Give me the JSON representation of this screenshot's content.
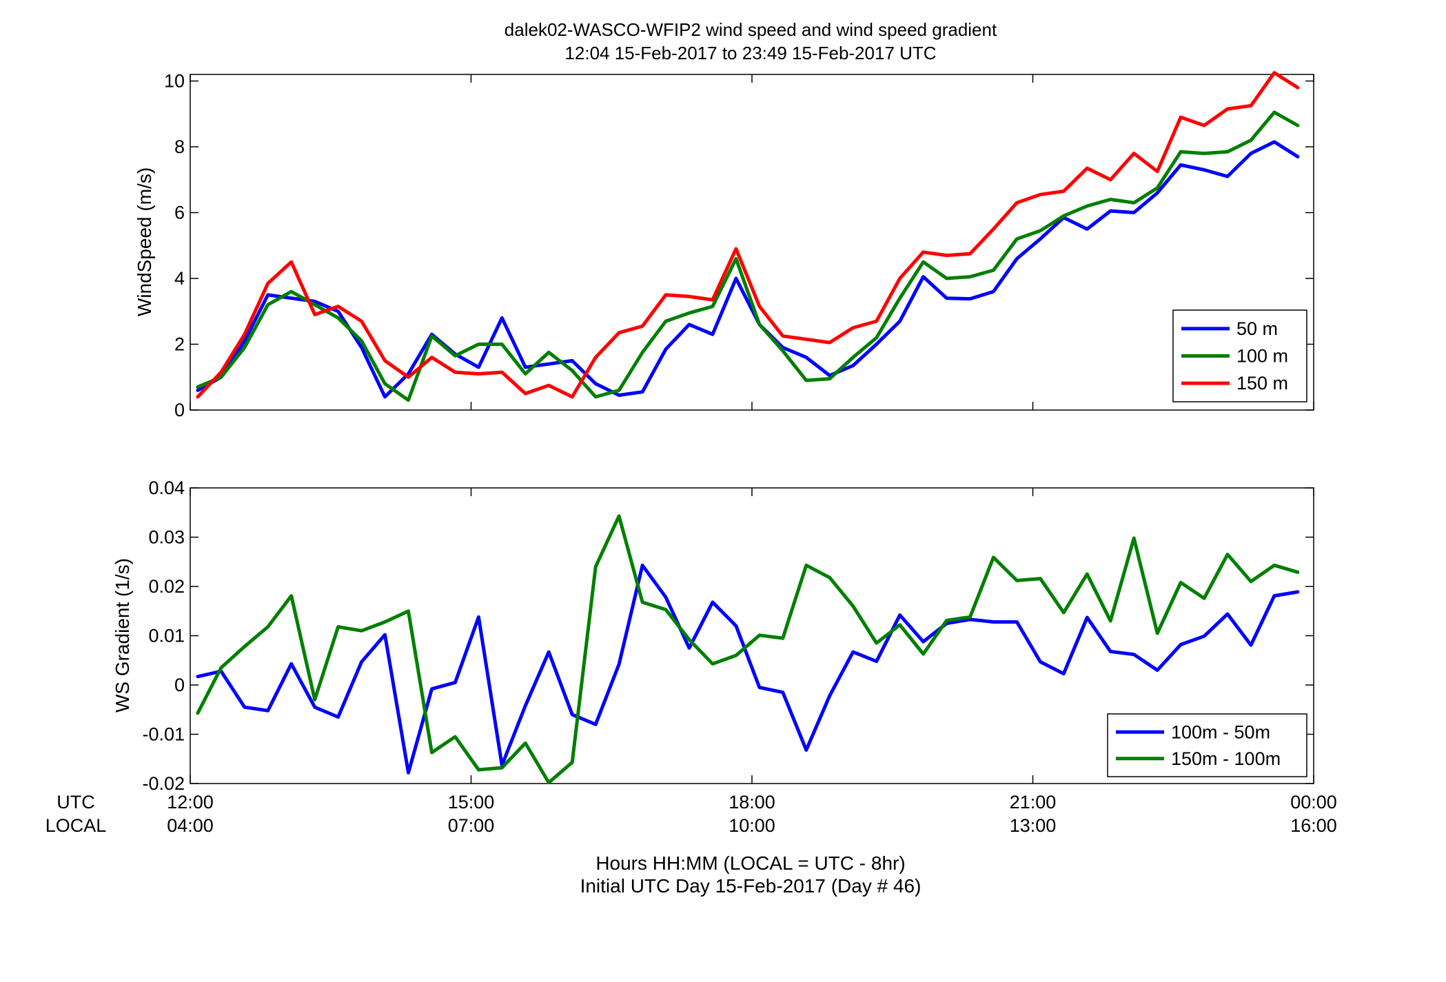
{
  "figure": {
    "title_line1": "dalek02-WASCO-WFIP2  wind speed and wind speed gradient",
    "title_line2": "12:04 15-Feb-2017 to 23:49 15-Feb-2017  UTC",
    "xlabel_line1": "Hours HH:MM  (LOCAL = UTC - 8hr)",
    "xlabel_line2": "Initial UTC Day 15-Feb-2017 (Day # 46)",
    "row_label_utc": "UTC",
    "row_label_local": "LOCAL",
    "utc_ticks": [
      "12:00",
      "15:00",
      "18:00",
      "21:00",
      "00:00"
    ],
    "local_ticks": [
      "04:00",
      "07:00",
      "10:00",
      "13:00",
      "16:00"
    ]
  },
  "chart_data": [
    {
      "type": "line",
      "ylabel": "WindSpeed (m/s)",
      "xlim": [
        12.0,
        24.0
      ],
      "ylim": [
        0,
        10.2
      ],
      "yticks": [
        0,
        2,
        4,
        6,
        8,
        10
      ],
      "ytick_labels": [
        "0",
        "2",
        "4",
        "6",
        "8",
        "10"
      ],
      "grid": false,
      "legend": "bottom-right",
      "x": [
        12.08,
        12.33,
        12.58,
        12.83,
        13.08,
        13.33,
        13.58,
        13.83,
        14.08,
        14.33,
        14.58,
        14.83,
        15.08,
        15.33,
        15.58,
        15.83,
        16.08,
        16.33,
        16.58,
        16.83,
        17.08,
        17.33,
        17.58,
        17.83,
        18.08,
        18.33,
        18.58,
        18.83,
        19.08,
        19.33,
        19.58,
        19.83,
        20.08,
        20.33,
        20.58,
        20.83,
        21.08,
        21.33,
        21.58,
        21.83,
        22.08,
        22.33,
        22.58,
        22.83,
        23.08,
        23.33,
        23.58,
        23.83
      ],
      "series": [
        {
          "name": "50 m",
          "color": "#0000ff",
          "values": [
            0.6,
            1.0,
            2.1,
            3.5,
            3.4,
            3.3,
            3.0,
            1.9,
            0.4,
            1.1,
            2.3,
            1.7,
            1.3,
            2.8,
            1.3,
            1.4,
            1.5,
            0.8,
            0.45,
            0.55,
            1.85,
            2.6,
            2.3,
            4.0,
            2.6,
            1.9,
            1.6,
            1.05,
            1.35,
            2.0,
            2.7,
            4.05,
            3.4,
            3.38,
            3.6,
            4.6,
            5.2,
            5.85,
            5.5,
            6.05,
            6.0,
            6.6,
            7.45,
            7.3,
            7.1,
            7.8,
            8.15,
            7.7
          ]
        },
        {
          "name": "100 m",
          "color": "#007f00",
          "values": [
            0.7,
            1.0,
            1.9,
            3.2,
            3.6,
            3.2,
            2.8,
            2.1,
            0.8,
            0.3,
            2.25,
            1.65,
            2.0,
            2.0,
            1.1,
            1.75,
            1.2,
            0.4,
            0.6,
            1.75,
            2.7,
            2.95,
            3.15,
            4.6,
            2.6,
            1.8,
            0.9,
            0.95,
            1.6,
            2.2,
            3.4,
            4.5,
            4.0,
            4.05,
            4.25,
            5.2,
            5.45,
            5.9,
            6.2,
            6.4,
            6.3,
            6.75,
            7.85,
            7.8,
            7.85,
            8.2,
            9.05,
            8.65
          ]
        },
        {
          "name": "150 m",
          "color": "#ff0000",
          "values": [
            0.4,
            1.15,
            2.3,
            3.85,
            4.5,
            2.9,
            3.15,
            2.7,
            1.5,
            1.0,
            1.6,
            1.15,
            1.1,
            1.15,
            0.5,
            0.75,
            0.4,
            1.6,
            2.35,
            2.55,
            3.5,
            3.45,
            3.35,
            4.9,
            3.15,
            2.25,
            2.15,
            2.05,
            2.5,
            2.7,
            4.0,
            4.8,
            4.7,
            4.75,
            5.5,
            6.3,
            6.55,
            6.65,
            7.35,
            7.0,
            7.8,
            7.25,
            8.9,
            8.65,
            9.15,
            9.25,
            10.25,
            9.8
          ]
        }
      ]
    },
    {
      "type": "line",
      "ylabel": "WS Gradient (1/s)",
      "xlim": [
        12.0,
        24.0
      ],
      "ylim": [
        -0.02,
        0.04
      ],
      "yticks": [
        -0.02,
        -0.01,
        0,
        0.01,
        0.02,
        0.03,
        0.04
      ],
      "ytick_labels": [
        "-0.02",
        "-0.01",
        "0",
        "0.01",
        "0.02",
        "0.03",
        "0.04"
      ],
      "grid": false,
      "legend": "bottom-right",
      "x": [
        12.08,
        12.33,
        12.58,
        12.83,
        13.08,
        13.33,
        13.58,
        13.83,
        14.08,
        14.33,
        14.58,
        14.83,
        15.08,
        15.33,
        15.58,
        15.83,
        16.08,
        16.33,
        16.58,
        16.83,
        17.08,
        17.33,
        17.58,
        17.83,
        18.08,
        18.33,
        18.58,
        18.83,
        19.08,
        19.33,
        19.58,
        19.83,
        20.08,
        20.33,
        20.58,
        20.83,
        21.08,
        21.33,
        21.58,
        21.83,
        22.08,
        22.33,
        22.58,
        22.83,
        23.08,
        23.33,
        23.58,
        23.83
      ],
      "series": [
        {
          "name": "100m - 50m",
          "color": "#0000ff",
          "values": [
            0.0017,
            0.0028,
            -0.0045,
            -0.0052,
            0.0043,
            -0.0045,
            -0.0065,
            0.0047,
            0.0102,
            -0.0178,
            -0.0008,
            0.0005,
            0.0138,
            -0.0163,
            -0.0042,
            0.0067,
            -0.006,
            -0.008,
            0.0042,
            0.0243,
            0.0178,
            0.0075,
            0.0168,
            0.012,
            -0.0005,
            -0.0015,
            -0.0132,
            -0.0022,
            0.0067,
            0.0048,
            0.0142,
            0.0088,
            0.0125,
            0.0133,
            0.0128,
            0.0128,
            0.0047,
            0.0023,
            0.0137,
            0.0068,
            0.0062,
            0.003,
            0.0082,
            0.0099,
            0.0144,
            0.0081,
            0.0181,
            0.0189
          ]
        },
        {
          "name": "150m - 100m",
          "color": "#007f00",
          "values": [
            -0.0057,
            0.0035,
            0.0078,
            0.0118,
            0.0181,
            -0.003,
            0.0118,
            0.011,
            0.0128,
            0.015,
            -0.0137,
            -0.0105,
            -0.0172,
            -0.0168,
            -0.0118,
            -0.0198,
            -0.0157,
            0.024,
            0.0343,
            0.0168,
            0.0153,
            0.0092,
            0.0043,
            0.006,
            0.0101,
            0.0095,
            0.0243,
            0.0218,
            0.016,
            0.0085,
            0.0122,
            0.0063,
            0.0131,
            0.0138,
            0.0259,
            0.0212,
            0.0216,
            0.0147,
            0.0225,
            0.013,
            0.0298,
            0.0105,
            0.0208,
            0.0176,
            0.0265,
            0.021,
            0.0243,
            0.0229
          ]
        }
      ]
    }
  ]
}
